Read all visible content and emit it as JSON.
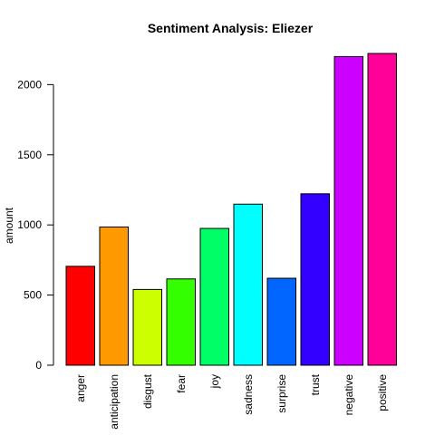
{
  "chart_data": {
    "type": "bar",
    "title": "Sentiment Analysis: Eliezer",
    "xlabel": "",
    "ylabel": "amount",
    "categories": [
      "anger",
      "anticipation",
      "disgust",
      "fear",
      "joy",
      "sadness",
      "surprise",
      "trust",
      "negative",
      "positive"
    ],
    "values": [
      705,
      985,
      540,
      615,
      975,
      1148,
      620,
      1222,
      2200,
      2222
    ],
    "colors": [
      "#FF0000",
      "#FF9900",
      "#CCFF00",
      "#33FF00",
      "#00FF66",
      "#00FFFF",
      "#0066FF",
      "#3300FF",
      "#CC00FF",
      "#FF0099"
    ],
    "yticks": [
      0,
      500,
      1000,
      1500,
      2000
    ],
    "ylim": [
      0,
      2222
    ],
    "grid": false,
    "legend": "none"
  }
}
